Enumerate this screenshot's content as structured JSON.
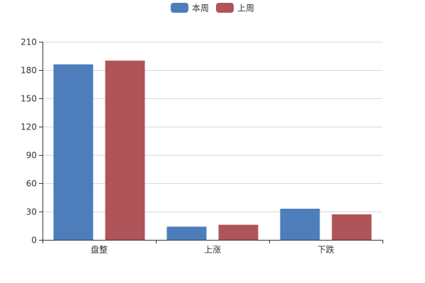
{
  "chart_data": {
    "type": "bar",
    "categories": [
      "盘整",
      "上涨",
      "下跌"
    ],
    "series": [
      {
        "name": "本周",
        "color": "#4d7ebb",
        "values": [
          186,
          14,
          33
        ]
      },
      {
        "name": "上周",
        "color": "#af5458",
        "values": [
          190,
          16,
          27
        ]
      }
    ],
    "ylim": [
      0,
      210
    ],
    "yticks": [
      0,
      30,
      60,
      90,
      120,
      150,
      180,
      210
    ],
    "grid": true,
    "legend_position": "top-center"
  }
}
